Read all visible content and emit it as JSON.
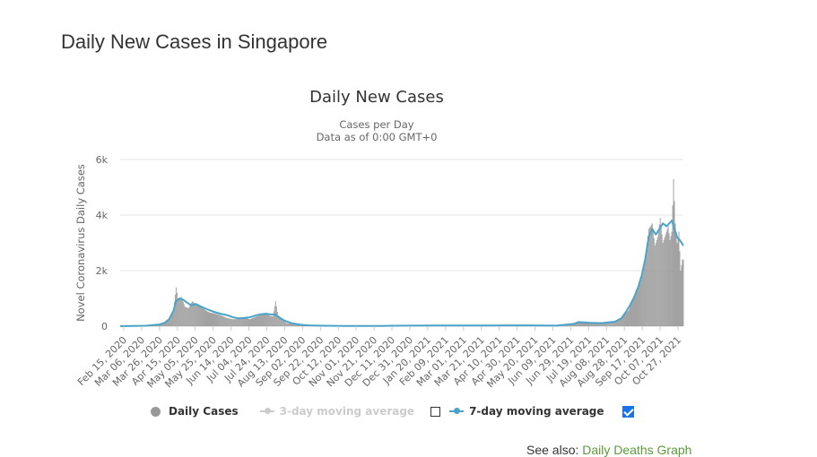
{
  "page": {
    "heading": "Daily New Cases in Singapore",
    "see_also_label": "See also:",
    "see_also_link": "Daily Deaths Graph"
  },
  "legend": {
    "daily_cases": "Daily Cases",
    "ma3": "3-day moving average",
    "ma7": "7-day moving average",
    "ma3_checked": false,
    "ma7_checked": true
  },
  "colors": {
    "bars": "#999999",
    "ma7": "#4aa3c8",
    "ma3_disabled": "#cccccc",
    "grid": "#e6e6e6",
    "link": "#5b9a3c"
  },
  "chart_data": {
    "type": "bar",
    "title": "Daily New Cases",
    "subtitle": [
      "Cases per Day",
      "Data as of 0:00 GMT+0"
    ],
    "xlabel": "",
    "ylabel": "Novel Coronavirus Daily Cases",
    "ylim": [
      0,
      6000
    ],
    "y_ticks": [
      0,
      2000,
      4000,
      6000
    ],
    "y_tick_labels": [
      "0",
      "2k",
      "4k",
      "6k"
    ],
    "grid": true,
    "legend_position": "bottom",
    "x_range": [
      "2020-02-15",
      "2021-11-10"
    ],
    "x_tick_labels": [
      "Feb 15, 2020",
      "Mar 06, 2020",
      "Mar 26, 2020",
      "Apr 15, 2020",
      "May 05, 2020",
      "May 25, 2020",
      "Jun 14, 2020",
      "Jul 04, 2020",
      "Jul 24, 2020",
      "Aug 13, 2020",
      "Sep 02, 2020",
      "Sep 22, 2020",
      "Oct 12, 2020",
      "Nov 01, 2020",
      "Nov 21, 2020",
      "Dec 11, 2020",
      "Dec 31, 2020",
      "Jan 20, 2021",
      "Feb 09, 2021",
      "Mar 01, 2021",
      "Mar 21, 2021",
      "Apr 10, 2021",
      "Apr 30, 2021",
      "May 20, 2021",
      "Jun 09, 2021",
      "Jun 29, 2021",
      "Jul 19, 2021",
      "Aug 08, 2021",
      "Aug 28, 2021",
      "Sep 17, 2021",
      "Oct 07, 2021",
      "Oct 27, 2021"
    ],
    "series": [
      {
        "name": "Daily Cases",
        "kind": "bar",
        "x": [
          "2020-02-15",
          "2020-03-15",
          "2020-03-30",
          "2020-04-05",
          "2020-04-10",
          "2020-04-15",
          "2020-04-18",
          "2020-04-20",
          "2020-04-24",
          "2020-04-28",
          "2020-05-02",
          "2020-05-06",
          "2020-05-10",
          "2020-05-15",
          "2020-05-20",
          "2020-05-25",
          "2020-06-01",
          "2020-06-07",
          "2020-06-14",
          "2020-06-21",
          "2020-06-28",
          "2020-07-04",
          "2020-07-10",
          "2020-07-16",
          "2020-07-22",
          "2020-07-28",
          "2020-08-01",
          "2020-08-05",
          "2020-08-08",
          "2020-08-11",
          "2020-08-15",
          "2020-08-20",
          "2020-08-27",
          "2020-09-05",
          "2020-09-15",
          "2020-10-01",
          "2020-11-01",
          "2020-12-01",
          "2021-01-01",
          "2021-02-01",
          "2021-03-01",
          "2021-04-01",
          "2021-05-01",
          "2021-05-20",
          "2021-06-01",
          "2021-06-20",
          "2021-07-10",
          "2021-07-15",
          "2021-07-20",
          "2021-07-28",
          "2021-08-10",
          "2021-08-25",
          "2021-09-01",
          "2021-09-05",
          "2021-09-10",
          "2021-09-15",
          "2021-09-20",
          "2021-09-24",
          "2021-09-28",
          "2021-10-02",
          "2021-10-06",
          "2021-10-09",
          "2021-10-12",
          "2021-10-15",
          "2021-10-18",
          "2021-10-21",
          "2021-10-24",
          "2021-10-26",
          "2021-10-28",
          "2021-10-30",
          "2021-11-01",
          "2021-11-03",
          "2021-11-05",
          "2021-11-07",
          "2021-11-09"
        ],
        "values": [
          0,
          20,
          70,
          120,
          250,
          600,
          1400,
          1000,
          1050,
          700,
          650,
          900,
          800,
          700,
          600,
          500,
          450,
          400,
          300,
          250,
          260,
          300,
          250,
          330,
          400,
          480,
          380,
          350,
          900,
          320,
          250,
          120,
          80,
          40,
          20,
          10,
          5,
          10,
          20,
          25,
          20,
          25,
          30,
          25,
          20,
          20,
          120,
          180,
          130,
          110,
          100,
          180,
          250,
          400,
          600,
          1000,
          1400,
          1900,
          2500,
          3500,
          3700,
          2900,
          3200,
          3900,
          3000,
          3300,
          3600,
          3100,
          3400,
          5300,
          3700,
          3000,
          3400,
          2000,
          2400
        ]
      },
      {
        "name": "7-day moving average",
        "kind": "line",
        "x": [
          "2020-02-15",
          "2020-03-15",
          "2020-03-30",
          "2020-04-05",
          "2020-04-10",
          "2020-04-15",
          "2020-04-18",
          "2020-04-22",
          "2020-04-26",
          "2020-04-30",
          "2020-05-05",
          "2020-05-10",
          "2020-05-15",
          "2020-05-20",
          "2020-05-25",
          "2020-06-01",
          "2020-06-07",
          "2020-06-14",
          "2020-06-21",
          "2020-06-28",
          "2020-07-04",
          "2020-07-10",
          "2020-07-16",
          "2020-07-22",
          "2020-07-28",
          "2020-08-04",
          "2020-08-08",
          "2020-08-12",
          "2020-08-18",
          "2020-08-27",
          "2020-09-05",
          "2020-09-15",
          "2020-10-01",
          "2020-11-01",
          "2020-12-01",
          "2021-01-01",
          "2021-02-01",
          "2021-03-01",
          "2021-04-01",
          "2021-05-01",
          "2021-05-20",
          "2021-06-01",
          "2021-06-20",
          "2021-07-10",
          "2021-07-15",
          "2021-07-20",
          "2021-07-28",
          "2021-08-10",
          "2021-08-25",
          "2021-09-01",
          "2021-09-05",
          "2021-09-10",
          "2021-09-15",
          "2021-09-20",
          "2021-09-24",
          "2021-09-28",
          "2021-10-02",
          "2021-10-06",
          "2021-10-10",
          "2021-10-14",
          "2021-10-18",
          "2021-10-22",
          "2021-10-25",
          "2021-10-28",
          "2021-10-31",
          "2021-11-03",
          "2021-11-06",
          "2021-11-08",
          "2021-11-10"
        ],
        "values": [
          0,
          15,
          60,
          120,
          250,
          550,
          900,
          1000,
          950,
          850,
          750,
          800,
          720,
          650,
          580,
          500,
          450,
          400,
          320,
          280,
          300,
          320,
          380,
          430,
          450,
          420,
          410,
          320,
          200,
          100,
          50,
          30,
          15,
          8,
          10,
          20,
          25,
          25,
          25,
          30,
          30,
          25,
          20,
          80,
          150,
          140,
          120,
          110,
          160,
          280,
          450,
          700,
          1000,
          1400,
          1800,
          2400,
          3200,
          3500,
          3300,
          3500,
          3700,
          3600,
          3700,
          3800,
          3500,
          3200,
          3100,
          3000,
          2900
        ]
      }
    ]
  }
}
